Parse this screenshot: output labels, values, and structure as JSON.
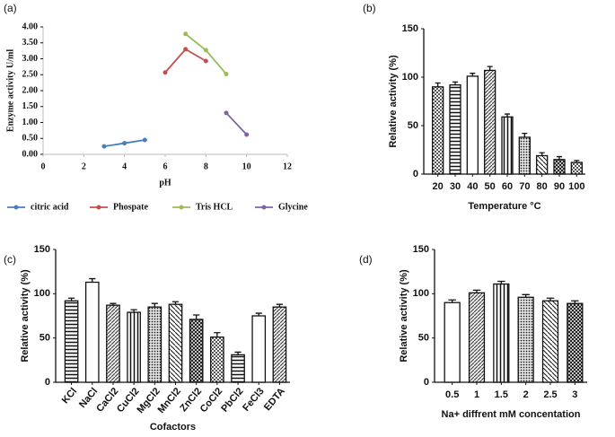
{
  "chart_data": [
    {
      "type": "line",
      "panel_label": "(a)",
      "x_label": "pH",
      "y_label": "Enzyme activity U/ml",
      "xlim": [
        0,
        12
      ],
      "xticks": [
        0,
        2,
        4,
        6,
        8,
        10,
        12
      ],
      "ylim": [
        0,
        4
      ],
      "yticks": [
        {
          "value": 0,
          "label": "0.00"
        },
        {
          "value": 0.5,
          "label": "0.50"
        },
        {
          "value": 1,
          "label": "1.00"
        },
        {
          "value": 1.5,
          "label": "1.50"
        },
        {
          "value": 2,
          "label": "2.00"
        },
        {
          "value": 2.5,
          "label": "2.50"
        },
        {
          "value": 3,
          "label": "3.00"
        },
        {
          "value": 3.5,
          "label": "3.50"
        },
        {
          "value": 4,
          "label": "4.00"
        }
      ],
      "series": [
        {
          "name": "citric acid",
          "color": "#4a7ebb",
          "x": [
            3,
            4,
            5
          ],
          "values": [
            0.25,
            0.35,
            0.45
          ]
        },
        {
          "name": "Phospate",
          "color": "#c0504d",
          "x": [
            6,
            7,
            8
          ],
          "values": [
            2.57,
            3.3,
            2.93
          ]
        },
        {
          "name": "Tris HCL",
          "color": "#9bbb59",
          "x": [
            7,
            8,
            9
          ],
          "values": [
            3.78,
            3.27,
            2.52
          ]
        },
        {
          "name": "Glycine",
          "color": "#8064a2",
          "x": [
            9,
            10
          ],
          "values": [
            1.3,
            0.62
          ]
        }
      ],
      "legend": "bottom"
    },
    {
      "type": "bar",
      "panel_label": "(b)",
      "x_label": "Temperature °C",
      "y_label": "Relative activity (%)",
      "categories": [
        "20",
        "30",
        "40",
        "50",
        "60",
        "70",
        "80",
        "90",
        "100"
      ],
      "values": [
        90,
        92,
        101,
        107,
        59,
        38,
        19,
        15,
        12
      ],
      "errors": [
        4,
        3,
        3,
        4,
        3,
        4,
        3,
        3,
        2
      ],
      "ylim": [
        0,
        150
      ],
      "yticks": [
        0,
        50,
        100,
        150
      ],
      "color": "#111111"
    },
    {
      "type": "bar",
      "panel_label": "(c)",
      "x_label": "Cofactors",
      "y_label": "Relative activity (%)",
      "categories": [
        "KCl",
        "NaCl",
        "CaCl2",
        "CuCl2",
        "MgCl2",
        "MnCl2",
        "ZnCl2",
        "CoCl2",
        "PbCl2",
        "FeCl3",
        "EDTA"
      ],
      "values": [
        92,
        113,
        87,
        79,
        85,
        88,
        71,
        51,
        31,
        75,
        85
      ],
      "errors": [
        3,
        4,
        2,
        3,
        4,
        3,
        5,
        5,
        3,
        3,
        3
      ],
      "ylim": [
        0,
        150
      ],
      "yticks": [
        0,
        50,
        100,
        150
      ],
      "color": "#111111"
    },
    {
      "type": "bar",
      "panel_label": "(d)",
      "x_label": "Na+ diffrent mM concentation",
      "y_label": "Relative activity (%)",
      "categories": [
        "0.5",
        "1",
        "1.5",
        "2",
        "2.5",
        "3"
      ],
      "values": [
        90,
        101,
        111,
        96,
        92,
        89
      ],
      "errors": [
        3,
        3,
        3,
        3,
        3,
        3
      ],
      "ylim": [
        0,
        150
      ],
      "yticks": [
        0,
        50,
        100,
        150
      ],
      "color": "#111111"
    }
  ]
}
